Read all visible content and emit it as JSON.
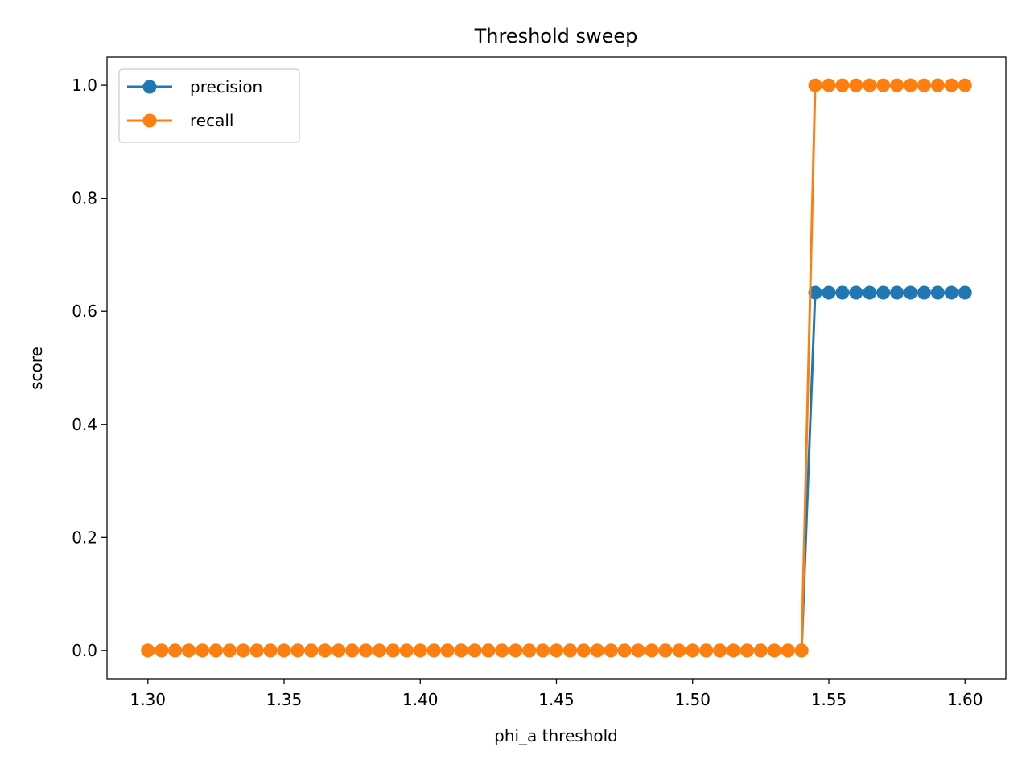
{
  "chart_data": {
    "type": "line",
    "title": "Threshold sweep",
    "xlabel": "phi_a threshold",
    "ylabel": "score",
    "xlim": [
      1.285,
      1.615
    ],
    "ylim": [
      -0.05,
      1.05
    ],
    "xticks": [
      "1.30",
      "1.35",
      "1.40",
      "1.45",
      "1.50",
      "1.55",
      "1.60"
    ],
    "yticks": [
      "0.0",
      "0.2",
      "0.4",
      "0.6",
      "0.8",
      "1.0"
    ],
    "grid": false,
    "legend_position": "top-left",
    "x": [
      1.3,
      1.305,
      1.31,
      1.315,
      1.32,
      1.325,
      1.33,
      1.335,
      1.34,
      1.345,
      1.35,
      1.355,
      1.36,
      1.365,
      1.37,
      1.375,
      1.38,
      1.385,
      1.39,
      1.395,
      1.4,
      1.405,
      1.41,
      1.415,
      1.42,
      1.425,
      1.43,
      1.435,
      1.44,
      1.445,
      1.45,
      1.455,
      1.46,
      1.465,
      1.47,
      1.475,
      1.48,
      1.485,
      1.49,
      1.495,
      1.5,
      1.505,
      1.51,
      1.515,
      1.52,
      1.525,
      1.53,
      1.535,
      1.54,
      1.545,
      1.55,
      1.555,
      1.56,
      1.565,
      1.57,
      1.575,
      1.58,
      1.585,
      1.59,
      1.595,
      1.6
    ],
    "series": [
      {
        "name": "precision",
        "color": "#1f77b4",
        "values": [
          0,
          0,
          0,
          0,
          0,
          0,
          0,
          0,
          0,
          0,
          0,
          0,
          0,
          0,
          0,
          0,
          0,
          0,
          0,
          0,
          0,
          0,
          0,
          0,
          0,
          0,
          0,
          0,
          0,
          0,
          0,
          0,
          0,
          0,
          0,
          0,
          0,
          0,
          0,
          0,
          0,
          0,
          0,
          0,
          0,
          0,
          0,
          0,
          0,
          0.633,
          0.633,
          0.633,
          0.633,
          0.633,
          0.633,
          0.633,
          0.633,
          0.633,
          0.633,
          0.633,
          0.633
        ]
      },
      {
        "name": "recall",
        "color": "#ff7f0e",
        "values": [
          0,
          0,
          0,
          0,
          0,
          0,
          0,
          0,
          0,
          0,
          0,
          0,
          0,
          0,
          0,
          0,
          0,
          0,
          0,
          0,
          0,
          0,
          0,
          0,
          0,
          0,
          0,
          0,
          0,
          0,
          0,
          0,
          0,
          0,
          0,
          0,
          0,
          0,
          0,
          0,
          0,
          0,
          0,
          0,
          0,
          0,
          0,
          0,
          0,
          1,
          1,
          1,
          1,
          1,
          1,
          1,
          1,
          1,
          1,
          1,
          1
        ]
      }
    ]
  }
}
